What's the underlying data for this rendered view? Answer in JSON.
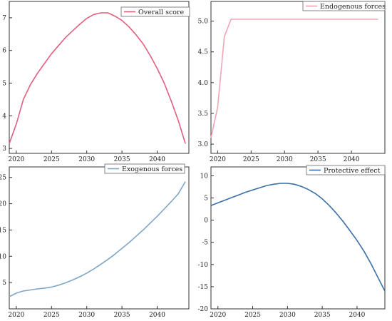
{
  "chart_data": [
    {
      "type": "line",
      "series": [
        {
          "name": "Overall score",
          "color": "#e0607e",
          "x": [
            2019,
            2020,
            2021,
            2022,
            2023,
            2024,
            2025,
            2026,
            2027,
            2028,
            2029,
            2030,
            2031,
            2032,
            2033,
            2034,
            2035,
            2036,
            2037,
            2038,
            2039,
            2040,
            2041,
            2042,
            2043,
            2044
          ],
          "y": [
            3.15,
            3.75,
            4.5,
            4.95,
            5.3,
            5.6,
            5.9,
            6.15,
            6.4,
            6.6,
            6.8,
            6.98,
            7.1,
            7.15,
            7.15,
            7.05,
            6.92,
            6.72,
            6.48,
            6.2,
            5.85,
            5.45,
            5.0,
            4.45,
            3.85,
            3.15
          ]
        }
      ],
      "xlim": [
        2019,
        2044.5
      ],
      "ylim": [
        2.85,
        7.5
      ],
      "xticks": [
        2020,
        2025,
        2030,
        2035,
        2040
      ],
      "yticks": [
        3,
        4,
        5,
        6,
        7
      ],
      "legend": "top-right"
    },
    {
      "type": "line",
      "series": [
        {
          "name": "Endogenous forces",
          "color": "#f0a5b2",
          "x": [
            2019,
            2020,
            2021,
            2022,
            2023,
            2030,
            2040,
            2044
          ],
          "y": [
            3.1,
            3.6,
            4.75,
            5.03,
            5.03,
            5.03,
            5.03,
            5.03
          ]
        }
      ],
      "xlim": [
        2019,
        2045
      ],
      "ylim": [
        2.85,
        5.32
      ],
      "xticks": [
        2020,
        2025,
        2030,
        2035,
        2040
      ],
      "yticks": [
        "3.0",
        "3.5",
        "4.0",
        "4.5",
        "5.0"
      ],
      "legend": "top-right"
    },
    {
      "type": "line",
      "series": [
        {
          "name": "Exogenous forces",
          "color": "#7ea6c8",
          "x": [
            2019,
            2020,
            2021,
            2022,
            2023,
            2024,
            2025,
            2026,
            2027,
            2028,
            2029,
            2030,
            2031,
            2032,
            2033,
            2034,
            2035,
            2036,
            2037,
            2038,
            2039,
            2040,
            2041,
            2042,
            2043,
            2044
          ],
          "y": [
            2.3,
            3.0,
            3.4,
            3.6,
            3.8,
            3.95,
            4.15,
            4.5,
            4.95,
            5.5,
            6.1,
            6.8,
            7.6,
            8.5,
            9.4,
            10.4,
            11.5,
            12.6,
            13.8,
            15.0,
            16.3,
            17.6,
            19.0,
            20.4,
            21.9,
            24.2
          ]
        }
      ],
      "xlim": [
        2019,
        2044.5
      ],
      "ylim": [
        0,
        27
      ],
      "xticks": [
        2020,
        2025,
        2030,
        2035,
        2040
      ],
      "yticks": [
        5,
        10,
        15,
        20,
        25
      ],
      "legend": "top-right"
    },
    {
      "type": "line",
      "series": [
        {
          "name": "Protective effect",
          "color": "#3a6fa8",
          "x": [
            2019,
            2020,
            2021,
            2022,
            2023,
            2024,
            2025,
            2026,
            2027,
            2028,
            2029,
            2030,
            2031,
            2032,
            2033,
            2034,
            2035,
            2036,
            2037,
            2038,
            2039,
            2040,
            2041,
            2042,
            2043,
            2044
          ],
          "y": [
            3.3,
            3.9,
            4.5,
            5.1,
            5.7,
            6.3,
            6.8,
            7.3,
            7.8,
            8.1,
            8.3,
            8.3,
            8.1,
            7.6,
            6.9,
            6.0,
            4.8,
            3.3,
            1.6,
            -0.3,
            -2.4,
            -4.6,
            -7.0,
            -9.8,
            -12.9,
            -16.0
          ]
        }
      ],
      "xlim": [
        2019,
        2044
      ],
      "ylim": [
        -20,
        12
      ],
      "xticks": [
        2020,
        2025,
        2030,
        2035,
        2040
      ],
      "yticks": [
        10,
        5,
        0,
        -5,
        -10,
        -15,
        -20
      ],
      "legend": "top-right"
    }
  ]
}
